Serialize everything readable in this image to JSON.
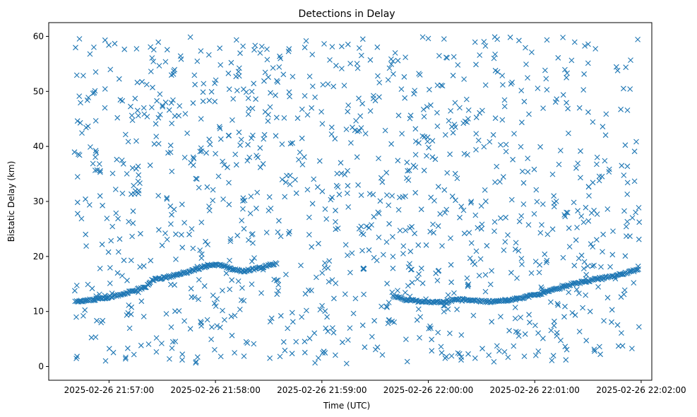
{
  "chart_data": {
    "type": "scatter",
    "title": "Detections in Delay",
    "xlabel": "Time (UTC)",
    "ylabel": "Bistatic Delay (km)",
    "marker": "x",
    "color": "#1f77b4",
    "grid": false,
    "xlim_seconds": [
      -34,
      306
    ],
    "x_origin": "2025-02-26 21:57:00",
    "ylim": [
      -2.5,
      62.5
    ],
    "x_ticks": [
      {
        "seconds": 0,
        "label": "2025-02-26 21:57:00"
      },
      {
        "seconds": 60,
        "label": "2025-02-26 21:58:00"
      },
      {
        "seconds": 120,
        "label": "2025-02-26 21:59:00"
      },
      {
        "seconds": 180,
        "label": "2025-02-26 22:00:00"
      },
      {
        "seconds": 240,
        "label": "2025-02-26 22:01:00"
      },
      {
        "seconds": 300,
        "label": "2025-02-26 22:02:00"
      }
    ],
    "y_ticks": [
      0,
      10,
      20,
      30,
      40,
      50,
      60
    ],
    "track": [
      [
        -19,
        11.8
      ],
      [
        -12,
        12.0
      ],
      [
        -6,
        12.3
      ],
      [
        0,
        12.6
      ],
      [
        6,
        13.0
      ],
      [
        12,
        13.6
      ],
      [
        18,
        14.2
      ],
      [
        21,
        14.5
      ],
      [
        24,
        15.7
      ],
      [
        30,
        16.1
      ],
      [
        36,
        16.5
      ],
      [
        42,
        17.0
      ],
      [
        45,
        17.2
      ],
      [
        48,
        17.6
      ],
      [
        54,
        18.1
      ],
      [
        60,
        18.5
      ],
      [
        64,
        18.4
      ],
      [
        68,
        17.8
      ],
      [
        72,
        17.5
      ],
      [
        76,
        17.3
      ],
      [
        80,
        17.6
      ],
      [
        86,
        18.0
      ],
      [
        92,
        18.6
      ],
      [
        95,
        18.8
      ],
      [
        160,
        12.8
      ],
      [
        168,
        12.1
      ],
      [
        176,
        11.8
      ],
      [
        184,
        11.7
      ],
      [
        190,
        11.6
      ],
      [
        196,
        12.3
      ],
      [
        204,
        12.1
      ],
      [
        212,
        11.8
      ],
      [
        220,
        11.8
      ],
      [
        228,
        12.2
      ],
      [
        236,
        12.7
      ],
      [
        242,
        13.1
      ],
      [
        248,
        13.8
      ],
      [
        254,
        14.2
      ],
      [
        260,
        14.9
      ],
      [
        268,
        15.4
      ],
      [
        276,
        16.0
      ],
      [
        284,
        16.4
      ],
      [
        290,
        16.9
      ],
      [
        296,
        17.4
      ],
      [
        299,
        17.6
      ]
    ],
    "noise_count": 1150,
    "noise_x_range": [
      -20,
      299
    ],
    "noise_y_range": [
      0.5,
      60
    ]
  }
}
